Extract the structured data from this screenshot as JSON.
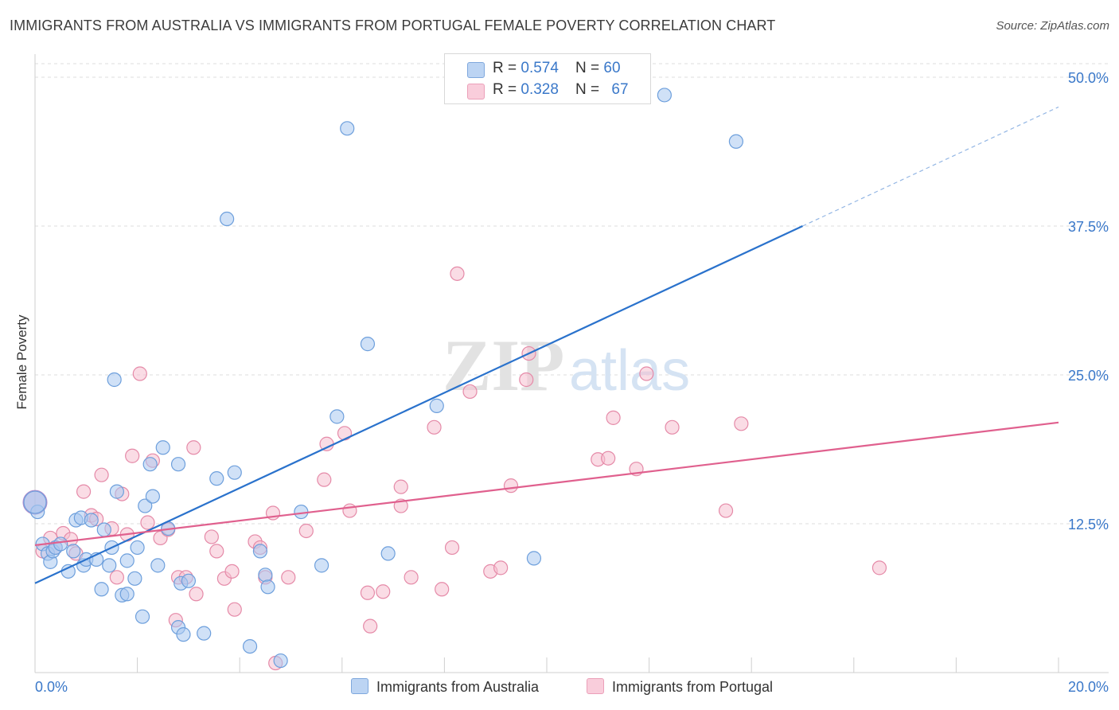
{
  "title": "IMMIGRANTS FROM AUSTRALIA VS IMMIGRANTS FROM PORTUGAL FEMALE POVERTY CORRELATION CHART",
  "source": "Source: ZipAtlas.com",
  "watermark": {
    "zip": "ZIP",
    "atlas": "atlas"
  },
  "colors": {
    "australia_fill": "#a9c8f0",
    "australia_stroke": "#6d9fdc",
    "australia_line": "#2a72cc",
    "portugal_fill": "#f6bfd0",
    "portugal_stroke": "#e58aa8",
    "portugal_line": "#e0608e",
    "axis_value": "#3a78c9"
  },
  "legend": {
    "australia": {
      "r_label": "R = ",
      "r_value": "0.574",
      "n_label": "N = ",
      "n_value": "60"
    },
    "portugal": {
      "r_label": "R = ",
      "r_value": "0.328",
      "n_label": "N = ",
      "n_value": "67"
    }
  },
  "chart_data": {
    "type": "scatter",
    "title": "IMMIGRANTS FROM AUSTRALIA VS IMMIGRANTS FROM PORTUGAL FEMALE POVERTY CORRELATION CHART",
    "xlabel": "",
    "ylabel": "Female Poverty",
    "xlim": [
      0,
      20
    ],
    "ylim": [
      0,
      50
    ],
    "x_tick_labels": [
      "0.0%",
      "20.0%"
    ],
    "y_ticks": [
      12.5,
      25.0,
      37.5,
      50.0
    ],
    "y_tick_labels": [
      "12.5%",
      "25.0%",
      "37.5%",
      "50.0%"
    ],
    "grid": true,
    "series": [
      {
        "name": "Immigrants from Australia",
        "trend": {
          "x0": 0,
          "y0": 7.5,
          "x1": 15.0,
          "y1": 37.5,
          "dashed_to_x": 20,
          "dashed_to_y": 47.5
        },
        "points": [
          [
            0.05,
            13.5
          ],
          [
            0.15,
            10.8
          ],
          [
            0.25,
            10.0
          ],
          [
            0.3,
            9.3
          ],
          [
            0.35,
            10.2
          ],
          [
            0.4,
            10.5
          ],
          [
            0.5,
            10.8
          ],
          [
            0.65,
            8.5
          ],
          [
            0.75,
            10.2
          ],
          [
            0.8,
            12.8
          ],
          [
            0.9,
            13.0
          ],
          [
            0.95,
            9.0
          ],
          [
            1.0,
            9.5
          ],
          [
            1.1,
            12.8
          ],
          [
            1.2,
            9.5
          ],
          [
            1.3,
            7.0
          ],
          [
            1.35,
            12.0
          ],
          [
            1.45,
            9.0
          ],
          [
            1.5,
            10.5
          ],
          [
            1.55,
            24.6
          ],
          [
            1.6,
            15.2
          ],
          [
            1.7,
            6.5
          ],
          [
            1.8,
            9.4
          ],
          [
            1.8,
            6.6
          ],
          [
            1.95,
            7.9
          ],
          [
            2.0,
            10.5
          ],
          [
            2.1,
            4.7
          ],
          [
            2.15,
            14.0
          ],
          [
            2.25,
            17.5
          ],
          [
            2.3,
            14.8
          ],
          [
            2.4,
            9.0
          ],
          [
            2.5,
            18.9
          ],
          [
            2.6,
            12.1
          ],
          [
            2.8,
            17.5
          ],
          [
            2.8,
            3.8
          ],
          [
            2.85,
            7.5
          ],
          [
            2.9,
            3.2
          ],
          [
            3.0,
            7.7
          ],
          [
            3.3,
            3.3
          ],
          [
            3.55,
            16.3
          ],
          [
            3.75,
            38.1
          ],
          [
            3.9,
            16.8
          ],
          [
            4.2,
            2.2
          ],
          [
            4.4,
            10.2
          ],
          [
            4.5,
            8.2
          ],
          [
            4.55,
            7.2
          ],
          [
            4.8,
            1.0
          ],
          [
            5.2,
            13.5
          ],
          [
            5.6,
            9.0
          ],
          [
            5.9,
            21.5
          ],
          [
            6.1,
            45.7
          ],
          [
            6.5,
            27.6
          ],
          [
            6.9,
            10.0
          ],
          [
            7.85,
            22.4
          ],
          [
            9.75,
            9.6
          ],
          [
            12.3,
            48.5
          ],
          [
            13.7,
            44.6
          ]
        ],
        "big_points": [
          [
            0.0,
            14.3
          ]
        ]
      },
      {
        "name": "Immigrants from Portugal",
        "trend": {
          "x0": 0,
          "y0": 10.7,
          "x1": 20,
          "y1": 21.0
        },
        "points": [
          [
            0.15,
            10.2
          ],
          [
            0.3,
            11.3
          ],
          [
            0.4,
            10.5
          ],
          [
            0.55,
            11.7
          ],
          [
            0.7,
            11.2
          ],
          [
            0.8,
            10.0
          ],
          [
            0.95,
            15.2
          ],
          [
            1.1,
            13.2
          ],
          [
            1.2,
            12.9
          ],
          [
            1.3,
            16.6
          ],
          [
            1.5,
            12.1
          ],
          [
            1.6,
            8.0
          ],
          [
            1.7,
            15.0
          ],
          [
            1.8,
            11.6
          ],
          [
            1.9,
            18.2
          ],
          [
            2.05,
            25.1
          ],
          [
            2.2,
            12.6
          ],
          [
            2.3,
            17.8
          ],
          [
            2.45,
            11.3
          ],
          [
            2.6,
            12.0
          ],
          [
            2.75,
            4.4
          ],
          [
            2.8,
            8.0
          ],
          [
            2.95,
            8.0
          ],
          [
            3.15,
            6.6
          ],
          [
            3.1,
            18.9
          ],
          [
            3.45,
            11.4
          ],
          [
            3.55,
            10.2
          ],
          [
            3.7,
            7.9
          ],
          [
            3.85,
            8.5
          ],
          [
            3.9,
            5.3
          ],
          [
            4.3,
            11.0
          ],
          [
            4.4,
            10.5
          ],
          [
            4.5,
            8.0
          ],
          [
            4.65,
            13.4
          ],
          [
            4.95,
            8.0
          ],
          [
            5.3,
            11.9
          ],
          [
            5.65,
            16.2
          ],
          [
            5.7,
            19.2
          ],
          [
            6.05,
            20.1
          ],
          [
            6.15,
            13.6
          ],
          [
            6.5,
            6.7
          ],
          [
            6.55,
            3.9
          ],
          [
            6.8,
            6.8
          ],
          [
            7.15,
            15.6
          ],
          [
            7.15,
            14.0
          ],
          [
            7.35,
            8.0
          ],
          [
            7.8,
            20.6
          ],
          [
            7.95,
            7.0
          ],
          [
            8.15,
            10.5
          ],
          [
            8.25,
            33.5
          ],
          [
            8.5,
            23.6
          ],
          [
            8.9,
            8.5
          ],
          [
            9.1,
            8.8
          ],
          [
            9.3,
            15.7
          ],
          [
            9.6,
            24.6
          ],
          [
            9.65,
            26.8
          ],
          [
            11.0,
            17.9
          ],
          [
            11.2,
            18.0
          ],
          [
            11.3,
            21.4
          ],
          [
            11.75,
            17.1
          ],
          [
            11.95,
            25.1
          ],
          [
            12.45,
            20.6
          ],
          [
            13.5,
            13.6
          ],
          [
            13.8,
            20.9
          ],
          [
            16.5,
            8.8
          ],
          [
            4.7,
            0.8
          ]
        ],
        "big_points": []
      }
    ]
  }
}
